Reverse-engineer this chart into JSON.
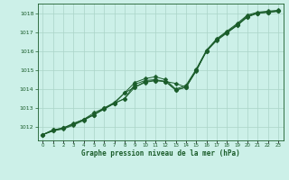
{
  "title": "Graphe pression niveau de la mer (hPa)",
  "yticks": [
    1012,
    1013,
    1014,
    1015,
    1016,
    1017,
    1018
  ],
  "ylim": [
    1011.3,
    1018.5
  ],
  "xlim": [
    -0.5,
    23.5
  ],
  "bg_color": "#ccf0e8",
  "grid_color": "#aad4c8",
  "line_color": "#1a5c2a",
  "line1": [
    1011.6,
    1011.85,
    1011.95,
    1012.15,
    1012.4,
    1012.65,
    1012.95,
    1013.25,
    1013.5,
    1014.25,
    1014.45,
    1014.5,
    1014.4,
    1013.95,
    1014.1,
    1015.0,
    1016.0,
    1016.6,
    1017.0,
    1017.35,
    1017.8,
    1018.0,
    1018.05,
    1018.1
  ],
  "line2": [
    1011.6,
    1011.8,
    1011.9,
    1012.1,
    1012.35,
    1012.65,
    1013.0,
    1013.25,
    1013.8,
    1014.1,
    1014.35,
    1014.45,
    1014.4,
    1014.3,
    1014.1,
    1014.95,
    1016.0,
    1016.6,
    1017.0,
    1017.4,
    1017.85,
    1018.0,
    1018.05,
    1018.1
  ],
  "line3": [
    1011.6,
    1011.85,
    1011.95,
    1012.2,
    1012.4,
    1012.75,
    1013.0,
    1013.3,
    1013.8,
    1014.35,
    1014.55,
    1014.65,
    1014.5,
    1014.0,
    1014.2,
    1015.05,
    1016.05,
    1016.65,
    1017.05,
    1017.45,
    1017.9,
    1018.05,
    1018.1,
    1018.15
  ],
  "line4": [
    1011.6,
    1011.8,
    1011.95,
    1012.15,
    1012.4,
    1012.65,
    1012.95,
    1013.25,
    1013.5,
    1014.1,
    1014.4,
    1014.45,
    1014.4,
    1013.95,
    1014.1,
    1015.0,
    1016.0,
    1016.55,
    1016.95,
    1017.35,
    1017.8,
    1018.0,
    1018.05,
    1018.1
  ]
}
